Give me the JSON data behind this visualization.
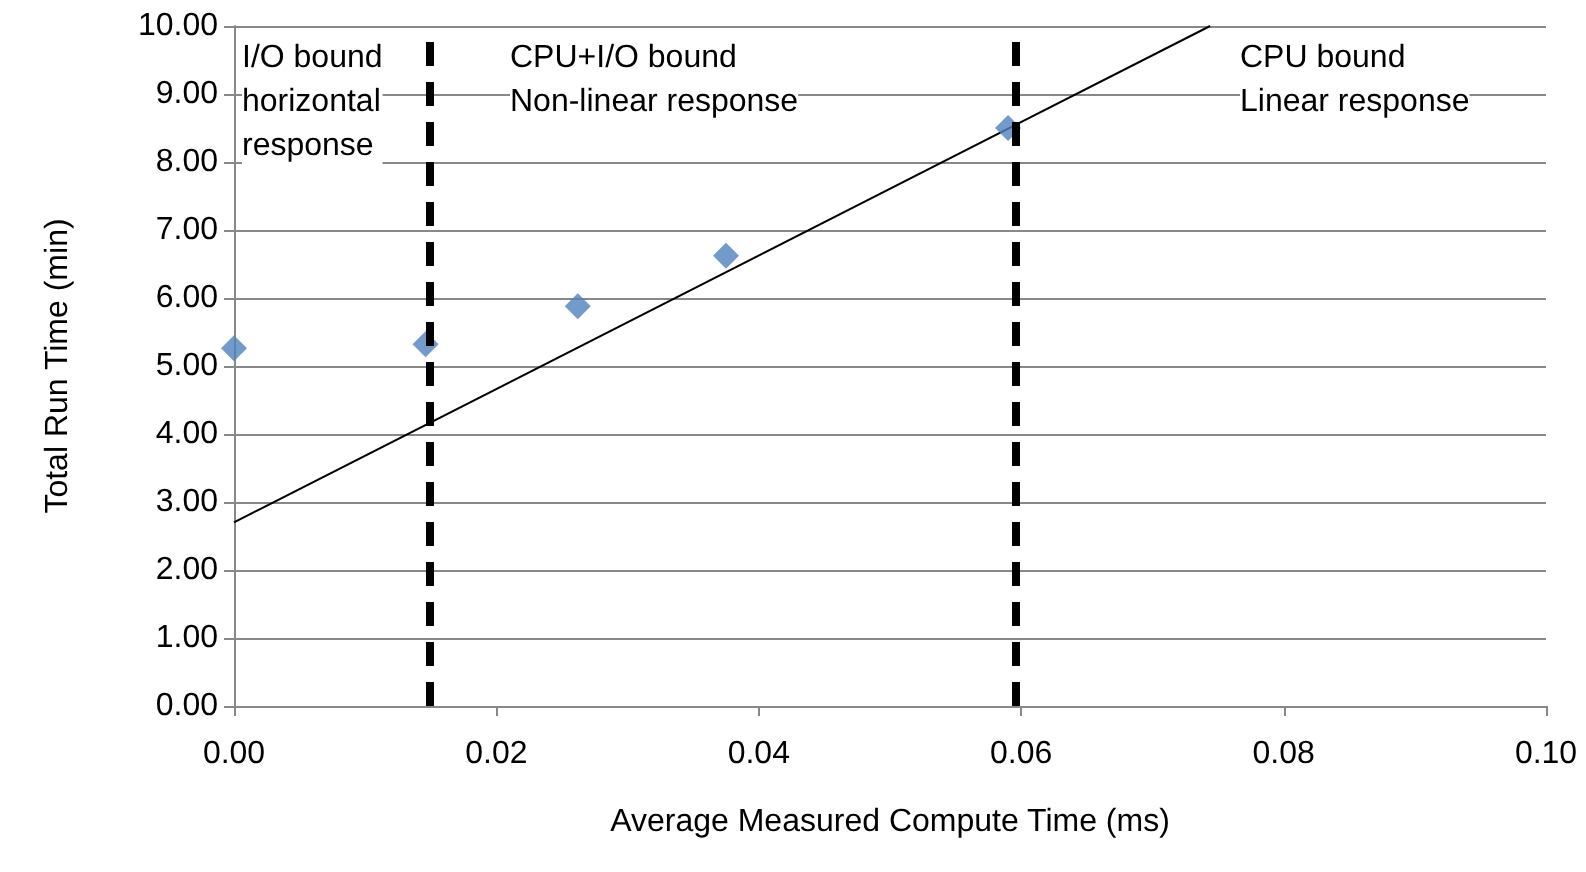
{
  "chart_data": {
    "type": "scatter",
    "xlabel": "Average Measured Compute Time (ms)",
    "ylabel": "Total Run Time (min)",
    "x": [
      0.0,
      0.0146,
      0.0262,
      0.0375,
      0.059
    ],
    "series": [
      {
        "type": "scatter",
        "color": "#4f81bd",
        "marker": "diamond",
        "values": [
          5.26,
          5.32,
          5.88,
          6.62,
          8.5
        ]
      },
      {
        "type": "line",
        "color": "#000000",
        "marker": "none",
        "x": [
          0,
          0.0744
        ],
        "values": [
          2.7,
          10
        ]
      }
    ],
    "xlim": [
      0,
      0.1
    ],
    "xticks": [
      {
        "value": 0,
        "label": "0.00"
      },
      {
        "value": 0.02,
        "label": "0.02"
      },
      {
        "value": 0.04,
        "label": "0.04"
      },
      {
        "value": 0.06,
        "label": "0.06"
      },
      {
        "value": 0.08,
        "label": "0.08"
      },
      {
        "value": 0.1,
        "label": "0.10"
      }
    ],
    "ylim": [
      0,
      10
    ],
    "yticks": [
      {
        "value": 0,
        "label": "0.00"
      },
      {
        "value": 1,
        "label": "1.00"
      },
      {
        "value": 2,
        "label": "2.00"
      },
      {
        "value": 3,
        "label": "3.00"
      },
      {
        "value": 4,
        "label": "4.00"
      },
      {
        "value": 5,
        "label": "5.00"
      },
      {
        "value": 6,
        "label": "6.00"
      },
      {
        "value": 7,
        "label": "7.00"
      },
      {
        "value": 8,
        "label": "8.00"
      },
      {
        "value": 9,
        "label": "9.00"
      },
      {
        "value": 10,
        "label": "10.00"
      }
    ],
    "grid": "y",
    "ref_lines": [
      {
        "axis": "x",
        "value": 0.0149,
        "color": "#000000",
        "line_style": "dashed"
      },
      {
        "axis": "x",
        "value": 0.0595,
        "color": "#000000",
        "line_style": "dashed"
      }
    ],
    "annotations": [
      "I/O bound\nhorizontal\nresponse",
      "CPU+I/O bound\nNon-linear response",
      "CPU bound\nLinear response"
    ]
  }
}
